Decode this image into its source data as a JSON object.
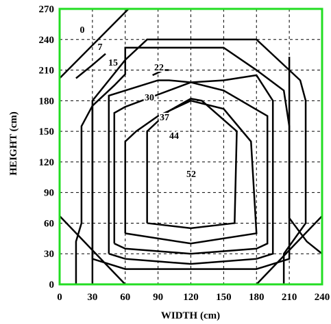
{
  "chart_data": {
    "type": "contour",
    "xlabel": "WIDTH (cm)",
    "ylabel": "HEIGHT (cm)",
    "xlim": [
      0,
      240
    ],
    "ylim": [
      0,
      270
    ],
    "xticks": [
      0,
      30,
      60,
      90,
      120,
      150,
      180,
      210,
      240
    ],
    "yticks": [
      0,
      30,
      60,
      90,
      120,
      150,
      180,
      210,
      240,
      270
    ],
    "grid": true,
    "frame_color": "#22dd22",
    "contours": [
      {
        "label": "0",
        "lines": [
          [
            [
              0,
              202
            ],
            [
              63,
              270
            ]
          ],
          [
            [
              240,
              67
            ],
            [
              180,
              0
            ]
          ],
          [
            [
              0,
              67
            ],
            [
              60,
              0
            ]
          ]
        ]
      },
      {
        "label": "7",
        "lines": [
          [
            [
              30,
              175
            ],
            [
              30,
              0
            ]
          ],
          [
            [
              210,
              223
            ],
            [
              210,
              65
            ],
            [
              226,
              42
            ],
            [
              240,
              30
            ]
          ],
          [
            [
              15,
              202
            ],
            [
              30,
              215
            ],
            [
              42,
              226
            ]
          ]
        ]
      },
      {
        "label": "15",
        "lines": [
          [
            [
              15,
              0
            ],
            [
              15,
              42
            ],
            [
              20,
              60
            ],
            [
              20,
              155
            ],
            [
              30,
              175
            ],
            [
              50,
              195
            ],
            [
              60,
              206
            ],
            [
              60,
              220
            ],
            [
              80,
              240
            ],
            [
              180,
              240
            ],
            [
              200,
              220
            ],
            [
              220,
              200
            ],
            [
              225,
              180
            ],
            [
              225,
              60
            ],
            [
              205,
              30
            ],
            [
              205,
              0
            ]
          ]
        ]
      },
      {
        "label": "22",
        "lines": [
          [
            [
              30,
              25
            ],
            [
              60,
              15
            ],
            [
              120,
              15
            ],
            [
              180,
              15
            ],
            [
              210,
              25
            ],
            [
              210,
              55
            ],
            [
              210,
              155
            ],
            [
              205,
              190
            ],
            [
              180,
              210
            ],
            [
              150,
              232
            ],
            [
              60,
              232
            ],
            [
              60,
              220
            ],
            [
              45,
              200
            ],
            [
              30,
              180
            ],
            [
              30,
              25
            ]
          ],
          [
            [
              85,
              205
            ],
            [
              95,
              210
            ],
            [
              100,
              210
            ]
          ]
        ]
      },
      {
        "label": "30",
        "lines": [
          [
            [
              45,
              30
            ],
            [
              60,
              25
            ],
            [
              120,
              20
            ],
            [
              180,
              25
            ],
            [
              195,
              30
            ],
            [
              195,
              180
            ],
            [
              180,
              205
            ],
            [
              150,
              200
            ],
            [
              120,
              198
            ],
            [
              100,
              200
            ],
            [
              90,
              200
            ],
            [
              60,
              190
            ],
            [
              45,
              185
            ],
            [
              45,
              30
            ]
          ]
        ]
      },
      {
        "label": "37",
        "lines": [
          [
            [
              50,
              40
            ],
            [
              60,
              35
            ],
            [
              120,
              30
            ],
            [
              180,
              35
            ],
            [
              190,
              40
            ],
            [
              190,
              165
            ],
            [
              150,
              190
            ],
            [
              120,
              198
            ],
            [
              90,
              186
            ],
            [
              60,
              174
            ],
            [
              50,
              168
            ],
            [
              50,
              40
            ]
          ]
        ]
      },
      {
        "label": "44",
        "lines": [
          [
            [
              60,
              50
            ],
            [
              120,
              40
            ],
            [
              180,
              50
            ],
            [
              175,
              140
            ],
            [
              150,
              172
            ],
            [
              120,
              180
            ],
            [
              90,
              165
            ],
            [
              70,
              150
            ],
            [
              60,
              140
            ],
            [
              60,
              50
            ]
          ]
        ]
      },
      {
        "label": "52",
        "lines": [
          [
            [
              80,
              60
            ],
            [
              120,
              55
            ],
            [
              160,
              60
            ],
            [
              162,
              150
            ],
            [
              130,
              180
            ],
            [
              120,
              182
            ],
            [
              100,
              170
            ],
            [
              80,
              150
            ],
            [
              80,
              60
            ]
          ]
        ]
      }
    ]
  }
}
